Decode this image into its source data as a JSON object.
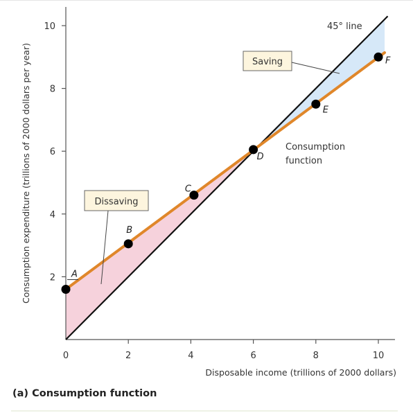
{
  "chart_data": {
    "type": "line",
    "xlabel": "Disposable income (trillions of 2000 dollars)",
    "ylabel": "Consumption expenditure (trillions of 2000 dollars per year)",
    "xlim": [
      0,
      10.5
    ],
    "ylim": [
      0,
      10.5
    ],
    "x_ticks": [
      0,
      2,
      4,
      6,
      8,
      10
    ],
    "y_ticks": [
      2,
      4,
      6,
      8,
      10
    ],
    "grid": false,
    "series": [
      {
        "name": "45° line",
        "x": [
          0,
          10.3
        ],
        "y": [
          0,
          10.3
        ],
        "color": "#111111"
      },
      {
        "name": "Consumption function",
        "x": [
          0,
          10.2
        ],
        "y": [
          1.6,
          9.14
        ],
        "color": "#e0872a"
      }
    ],
    "points": [
      {
        "label": "A",
        "x": 0,
        "y": 1.6
      },
      {
        "label": "B",
        "x": 2,
        "y": 3.05
      },
      {
        "label": "C",
        "x": 4.1,
        "y": 4.6
      },
      {
        "label": "D",
        "x": 6,
        "y": 6.05
      },
      {
        "label": "E",
        "x": 8,
        "y": 7.5
      },
      {
        "label": "F",
        "x": 10,
        "y": 9
      }
    ],
    "annotations": {
      "saving": "Saving",
      "dissaving": "Dissaving",
      "consumption_function_line1": "Consumption",
      "consumption_function_line2": "function",
      "line_45": "45° line"
    },
    "colors": {
      "saving_fill": "#d6e8f8",
      "dissaving_fill": "#f6d2dc",
      "consumption_line": "#e0872a",
      "line_45": "#111111",
      "points": "#000000",
      "box_fill": "#fdf5de"
    }
  },
  "caption": "(a) Consumption function"
}
